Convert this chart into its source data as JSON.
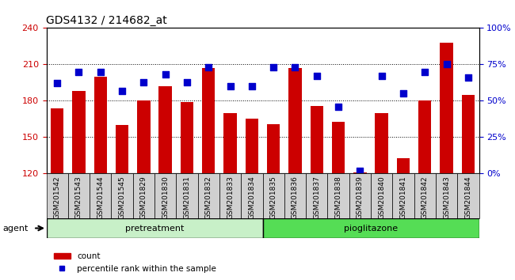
{
  "title": "GDS4132 / 214682_at",
  "samples": [
    "GSM201542",
    "GSM201543",
    "GSM201544",
    "GSM201545",
    "GSM201829",
    "GSM201830",
    "GSM201831",
    "GSM201832",
    "GSM201833",
    "GSM201834",
    "GSM201835",
    "GSM201836",
    "GSM201837",
    "GSM201838",
    "GSM201839",
    "GSM201840",
    "GSM201841",
    "GSM201842",
    "GSM201843",
    "GSM201844"
  ],
  "counts": [
    174,
    188,
    200,
    160,
    180,
    192,
    179,
    207,
    170,
    165,
    161,
    207,
    176,
    163,
    121,
    170,
    133,
    180,
    228,
    185
  ],
  "percentiles": [
    62,
    70,
    70,
    57,
    63,
    68,
    63,
    73,
    60,
    60,
    73,
    73,
    67,
    46,
    2,
    67,
    55,
    70,
    75,
    66
  ],
  "pretreatment_count": 10,
  "pioglitazone_count": 10,
  "bar_color": "#cc0000",
  "dot_color": "#0000cc",
  "ylim_left": [
    120,
    240
  ],
  "ylim_right": [
    0,
    100
  ],
  "yticks_left": [
    120,
    150,
    180,
    210,
    240
  ],
  "yticks_right": [
    0,
    25,
    50,
    75,
    100
  ],
  "ytick_labels_right": [
    "0%",
    "25%",
    "50%",
    "75%",
    "100%"
  ],
  "legend_count_label": "count",
  "legend_percentile_label": "percentile rank within the sample",
  "agent_label": "agent",
  "pretreatment_label": "pretreatment",
  "pioglitazone_label": "pioglitazone",
  "bg_plot": "#ffffff",
  "bg_xticklabels": "#d0d0d0",
  "bg_pretreatment": "#c8f0c8",
  "bg_pioglitazone": "#55dd55",
  "title_color": "#000000",
  "left_tick_color": "#cc0000",
  "right_tick_color": "#0000cc"
}
